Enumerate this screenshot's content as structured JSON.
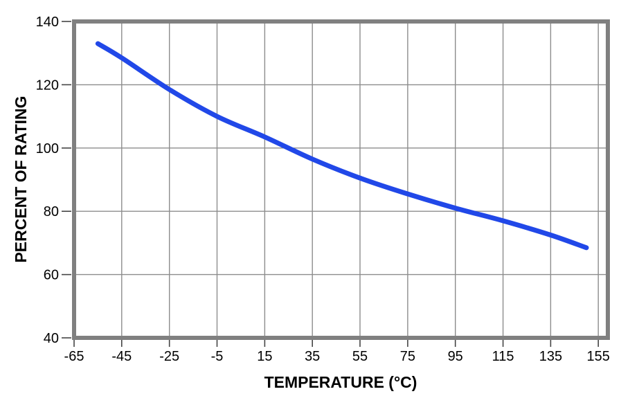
{
  "chart_data": {
    "type": "line",
    "title": "",
    "xlabel": "TEMPERATURE (°C)",
    "ylabel": "PERCENT OF RATING",
    "xlim": [
      -65,
      159
    ],
    "ylim": [
      40,
      140
    ],
    "xticks": [
      -65,
      -45,
      -25,
      -5,
      15,
      35,
      55,
      75,
      95,
      115,
      135,
      155
    ],
    "yticks": [
      40,
      60,
      80,
      100,
      120,
      140
    ],
    "grid": true,
    "legend": "none",
    "series": [
      {
        "name": "percent-of-rating-vs-temperature",
        "color": "#2148e8",
        "line_width": 7,
        "points": [
          [
            -55,
            133
          ],
          [
            -45,
            128.5
          ],
          [
            -25,
            118.5
          ],
          [
            -5,
            110
          ],
          [
            15,
            103.5
          ],
          [
            35,
            96.5
          ],
          [
            55,
            90.5
          ],
          [
            75,
            85.5
          ],
          [
            95,
            81
          ],
          [
            115,
            77
          ],
          [
            135,
            72.5
          ],
          [
            150,
            68.5
          ]
        ]
      }
    ],
    "style": {
      "background": "#ffffff",
      "grid_color": "#8c8c8c",
      "border_color": "#808080",
      "tick_color": "#444444",
      "text_color": "#000000"
    }
  }
}
